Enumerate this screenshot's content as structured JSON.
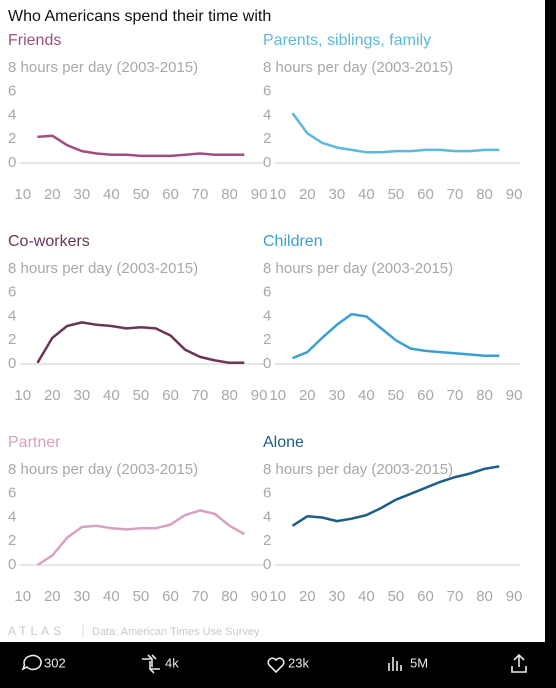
{
  "page_title": "Who Americans spend their time with",
  "brand": "ATLAS",
  "source": "Data: American Times Use Survey",
  "actions": [
    "302",
    "4k",
    "23k",
    "5M"
  ],
  "chart_data": [
    {
      "type": "line",
      "title": "Friends",
      "color": "#9e4f80",
      "x": [
        15,
        20,
        25,
        30,
        35,
        40,
        45,
        50,
        55,
        60,
        65,
        70,
        75,
        80,
        85
      ],
      "values": [
        2.2,
        2.3,
        1.5,
        1.0,
        0.8,
        0.7,
        0.7,
        0.6,
        0.6,
        0.6,
        0.7,
        0.8,
        0.7,
        0.7,
        0.7
      ],
      "xlim": [
        5,
        92
      ],
      "ylim": [
        0,
        8
      ],
      "xticks": [
        10,
        20,
        30,
        40,
        50,
        60,
        70,
        80,
        90
      ],
      "yticks": [
        0,
        2,
        4,
        6,
        {
          "value": 8,
          "label": "8 hours per day (2003-2015)"
        }
      ]
    },
    {
      "type": "line",
      "title": "Parents, siblings, family",
      "color": "#5bb8de",
      "x": [
        15,
        20,
        25,
        30,
        35,
        40,
        45,
        50,
        55,
        60,
        65,
        70,
        75,
        80,
        85
      ],
      "values": [
        4.2,
        2.5,
        1.7,
        1.3,
        1.1,
        0.9,
        0.9,
        1.0,
        1.0,
        1.1,
        1.1,
        1.0,
        1.0,
        1.1,
        1.1
      ],
      "xlim": [
        5,
        92
      ],
      "ylim": [
        0,
        8
      ],
      "xticks": [
        10,
        20,
        30,
        40,
        50,
        60,
        70,
        80,
        90
      ],
      "yticks": [
        0,
        2,
        4,
        6,
        {
          "value": 8,
          "label": "8 hours per day (2003-2015)"
        }
      ]
    },
    {
      "type": "line",
      "title": "Co-workers",
      "color": "#6b3556",
      "x": [
        15,
        20,
        25,
        30,
        35,
        40,
        45,
        50,
        55,
        60,
        65,
        70,
        75,
        80,
        85
      ],
      "values": [
        0.1,
        2.2,
        3.2,
        3.5,
        3.3,
        3.2,
        3.0,
        3.1,
        3.0,
        2.4,
        1.2,
        0.6,
        0.3,
        0.1,
        0.1
      ],
      "xlim": [
        5,
        92
      ],
      "ylim": [
        0,
        8
      ],
      "xticks": [
        10,
        20,
        30,
        40,
        50,
        60,
        70,
        80,
        90
      ],
      "yticks": [
        0,
        2,
        4,
        6,
        {
          "value": 8,
          "label": "8 hours per day (2003-2015)"
        }
      ]
    },
    {
      "type": "line",
      "title": "Children",
      "color": "#3a9fd5",
      "x": [
        15,
        20,
        25,
        30,
        35,
        40,
        45,
        50,
        55,
        60,
        65,
        70,
        75,
        80,
        85
      ],
      "values": [
        0.5,
        1.0,
        2.2,
        3.3,
        4.2,
        4.0,
        3.0,
        2.0,
        1.3,
        1.1,
        1.0,
        0.9,
        0.8,
        0.7,
        0.7
      ],
      "xlim": [
        5,
        92
      ],
      "ylim": [
        0,
        8
      ],
      "xticks": [
        10,
        20,
        30,
        40,
        50,
        60,
        70,
        80,
        90
      ],
      "yticks": [
        0,
        2,
        4,
        6,
        {
          "value": 8,
          "label": "8 hours per day (2003-2015)"
        }
      ]
    },
    {
      "type": "line",
      "title": "Partner",
      "color": "#d9a1c1",
      "x": [
        15,
        20,
        25,
        30,
        35,
        40,
        45,
        50,
        55,
        60,
        65,
        70,
        75,
        80,
        85
      ],
      "values": [
        0.0,
        0.8,
        2.3,
        3.2,
        3.3,
        3.1,
        3.0,
        3.1,
        3.1,
        3.4,
        4.2,
        4.6,
        4.3,
        3.3,
        2.6
      ],
      "xlim": [
        5,
        92
      ],
      "ylim": [
        0,
        8
      ],
      "xticks": [
        10,
        20,
        30,
        40,
        50,
        60,
        70,
        80,
        90
      ],
      "yticks": [
        0,
        2,
        4,
        6,
        {
          "value": 8,
          "label": "8 hours per day (2003-2015)"
        }
      ]
    },
    {
      "type": "line",
      "title": "Alone",
      "color": "#1b5e89",
      "x": [
        15,
        20,
        25,
        30,
        35,
        40,
        45,
        50,
        55,
        60,
        65,
        70,
        75,
        80,
        85
      ],
      "values": [
        3.3,
        4.1,
        4.0,
        3.7,
        3.9,
        4.2,
        4.8,
        5.5,
        6.0,
        6.5,
        7.0,
        7.4,
        7.7,
        8.1,
        8.3
      ],
      "xlim": [
        5,
        92
      ],
      "ylim": [
        0,
        8
      ],
      "xticks": [
        10,
        20,
        30,
        40,
        50,
        60,
        70,
        80,
        90
      ],
      "yticks": [
        0,
        2,
        4,
        6,
        {
          "value": 8,
          "label": "8 hours per day (2003-2015)"
        }
      ]
    }
  ]
}
